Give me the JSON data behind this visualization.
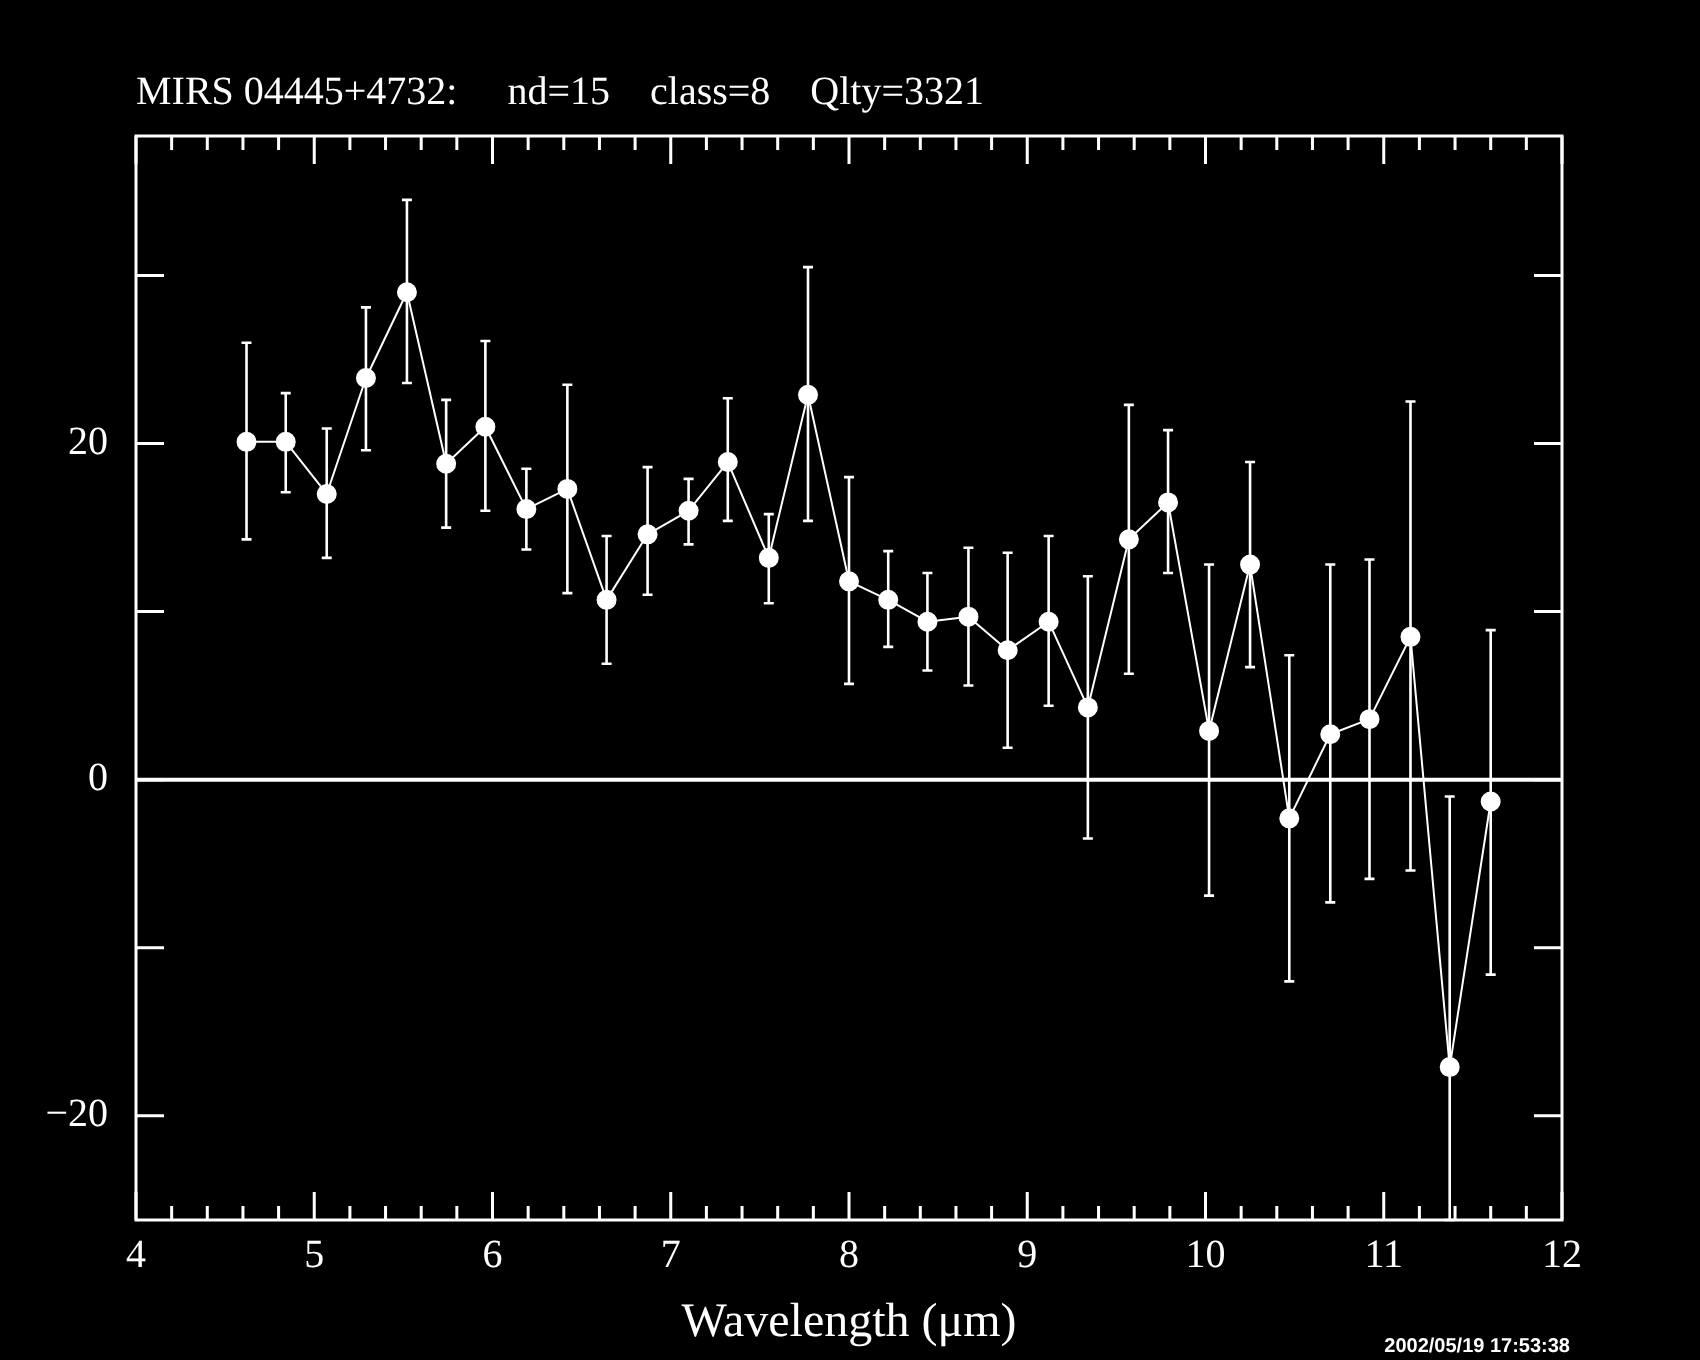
{
  "chart_data": {
    "type": "line",
    "title": "MIRS 04445+4732:     nd=15    class=8    Qlty=3321",
    "xlabel": "Wavelength (μm)",
    "x": [
      4.62,
      4.84,
      5.07,
      5.29,
      5.52,
      5.74,
      5.96,
      6.19,
      6.42,
      6.64,
      6.87,
      7.1,
      7.32,
      7.55,
      7.77,
      8.0,
      8.22,
      8.44,
      8.67,
      8.89,
      9.12,
      9.34,
      9.57,
      9.79,
      10.02,
      10.25,
      10.47,
      10.7,
      10.92,
      11.15,
      11.37,
      11.6
    ],
    "series": [
      {
        "color": "#ffffff",
        "values": [
          20.1,
          20.1,
          17.0,
          23.9,
          29.0,
          18.8,
          21.0,
          16.1,
          17.3,
          10.7,
          14.6,
          16.0,
          18.9,
          13.2,
          22.9,
          11.8,
          10.7,
          9.4,
          9.7,
          7.7,
          9.4,
          4.3,
          14.3,
          16.5,
          2.9,
          12.8,
          -2.3,
          2.7,
          3.6,
          8.5,
          -17.1,
          -1.3
        ],
        "errors": [
          [
            14.3,
            26.0
          ],
          [
            17.1,
            23.0
          ],
          [
            13.2,
            20.9
          ],
          [
            19.6,
            28.1
          ],
          [
            23.6,
            34.5
          ],
          [
            15.0,
            22.6
          ],
          [
            16.0,
            26.1
          ],
          [
            13.7,
            18.5
          ],
          [
            11.1,
            23.5
          ],
          [
            6.9,
            14.5
          ],
          [
            11.0,
            18.6
          ],
          [
            14.0,
            17.9
          ],
          [
            15.4,
            22.7
          ],
          [
            10.5,
            15.8
          ],
          [
            15.4,
            30.5
          ],
          [
            5.7,
            18.0
          ],
          [
            7.9,
            13.6
          ],
          [
            6.5,
            12.3
          ],
          [
            5.6,
            13.8
          ],
          [
            1.9,
            13.5
          ],
          [
            4.4,
            14.5
          ],
          [
            -3.5,
            12.1
          ],
          [
            6.3,
            22.3
          ],
          [
            12.3,
            20.8
          ],
          [
            -6.9,
            12.8
          ],
          [
            6.7,
            18.9
          ],
          [
            -12.0,
            7.4
          ],
          [
            -7.3,
            12.8
          ],
          [
            -5.9,
            13.1
          ],
          [
            -5.4,
            22.5
          ],
          [
            -26.2,
            -1.0
          ],
          [
            -11.6,
            8.9
          ]
        ]
      }
    ],
    "xlim": [
      4,
      12
    ],
    "ylim": [
      -26.2,
      38.3
    ],
    "xticks": [
      4,
      {
        "value": 4.2,
        "label": null
      },
      {
        "value": 4.4,
        "label": null
      },
      {
        "value": 4.6,
        "label": null
      },
      {
        "value": 4.8,
        "label": null
      },
      5,
      {
        "value": 5.2,
        "label": null
      },
      {
        "value": 5.4,
        "label": null
      },
      {
        "value": 5.6,
        "label": null
      },
      {
        "value": 5.8,
        "label": null
      },
      6,
      {
        "value": 6.2,
        "label": null
      },
      {
        "value": 6.4,
        "label": null
      },
      {
        "value": 6.6,
        "label": null
      },
      {
        "value": 6.8,
        "label": null
      },
      7,
      {
        "value": 7.2,
        "label": null
      },
      {
        "value": 7.4,
        "label": null
      },
      {
        "value": 7.6,
        "label": null
      },
      {
        "value": 7.8,
        "label": null
      },
      8,
      {
        "value": 8.2,
        "label": null
      },
      {
        "value": 8.4,
        "label": null
      },
      {
        "value": 8.6,
        "label": null
      },
      {
        "value": 8.8,
        "label": null
      },
      9,
      {
        "value": 9.2,
        "label": null
      },
      {
        "value": 9.4,
        "label": null
      },
      {
        "value": 9.6,
        "label": null
      },
      {
        "value": 9.8,
        "label": null
      },
      10,
      {
        "value": 10.2,
        "label": null
      },
      {
        "value": 10.4,
        "label": null
      },
      {
        "value": 10.6,
        "label": null
      },
      {
        "value": 10.8,
        "label": null
      },
      11,
      {
        "value": 11.2,
        "label": null
      },
      {
        "value": 11.4,
        "label": null
      },
      {
        "value": 11.6,
        "label": null
      },
      {
        "value": 11.8,
        "label": null
      },
      12
    ],
    "yticks": [
      -20,
      {
        "value": -10,
        "label": null
      },
      0,
      {
        "value": 10,
        "label": null
      },
      20,
      {
        "value": 30,
        "label": null
      }
    ],
    "ref_lines": [
      {
        "axis": "y",
        "value": 0,
        "color": "#ffffff"
      }
    ],
    "annotations": [
      "2002/05/19 17:53:38"
    ],
    "marker": "circle",
    "line_style": "solid",
    "grid": false,
    "legend": false
  }
}
